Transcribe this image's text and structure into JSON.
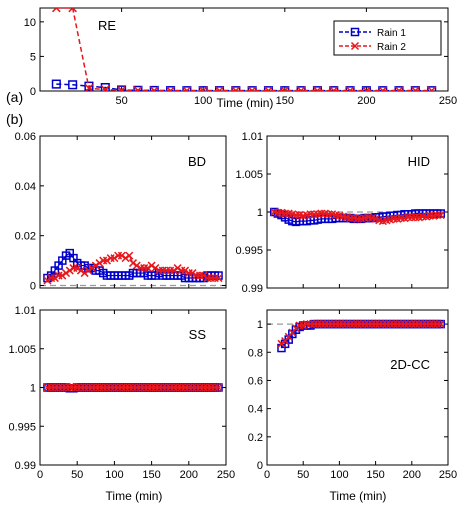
{
  "panel_labels": {
    "a": "(a)",
    "b": "(b)"
  },
  "colors": {
    "rain1": "#0000cc",
    "rain2": "#e8161b",
    "ref": "#999999",
    "axis": "#000000"
  },
  "chart_data": [
    {
      "id": "RE",
      "type": "line",
      "title": "RE",
      "xlabel": "Time (min)",
      "ylabel": "",
      "xlim": [
        0,
        250
      ],
      "ylim": [
        0,
        12
      ],
      "xticks": [
        0,
        50,
        100,
        150,
        200,
        250
      ],
      "yticks": [
        0,
        5,
        10
      ],
      "xtick_labels": [
        "",
        "50",
        "100",
        "150",
        "200",
        "250"
      ],
      "ytick_labels": [
        "0",
        "5",
        "10"
      ],
      "legend": {
        "position": "top-right",
        "entries": [
          "Rain 1",
          "Rain 2"
        ]
      },
      "series": [
        {
          "name": "Rain 1",
          "marker": "square",
          "style": "dashed",
          "color": "#0000cc",
          "x": [
            10,
            20,
            30,
            40,
            50,
            60,
            70,
            80,
            90,
            100,
            110,
            120,
            130,
            140,
            150,
            160,
            170,
            180,
            190,
            200,
            210,
            220,
            230,
            240
          ],
          "y": [
            1.0,
            0.9,
            0.7,
            0.5,
            0.15,
            0.1,
            0.08,
            0.06,
            0.05,
            0.05,
            0.05,
            0.05,
            0.05,
            0.05,
            0.05,
            0.05,
            0.05,
            0.05,
            0.05,
            0.05,
            0.05,
            0.05,
            0.05,
            0.05
          ]
        },
        {
          "name": "Rain 2",
          "marker": "x",
          "style": "dashed",
          "color": "#e8161b",
          "x": [
            10,
            20,
            30,
            40,
            50,
            60,
            70,
            80,
            90,
            100,
            110,
            120,
            130,
            140,
            150,
            160,
            170,
            180,
            190,
            200,
            210,
            220,
            230,
            240
          ],
          "y": [
            12,
            12,
            0.4,
            0.2,
            0.1,
            0.08,
            0.06,
            0.05,
            0.05,
            0.05,
            0.05,
            0.05,
            0.05,
            0.05,
            0.05,
            0.05,
            0.05,
            0.05,
            0.05,
            0.05,
            0.05,
            0.05,
            0.05,
            0.05
          ]
        }
      ]
    },
    {
      "id": "BD",
      "type": "line",
      "title": "BD",
      "xlabel": "",
      "ylabel": "",
      "xlim": [
        0,
        250
      ],
      "ylim": [
        -0.001,
        0.06
      ],
      "xticks": [
        0,
        50,
        100,
        150,
        200,
        250
      ],
      "yticks": [
        0,
        0.02,
        0.04,
        0.06
      ],
      "xtick_labels": [],
      "ytick_labels": [
        "0",
        "0.02",
        "0.04",
        "0.06"
      ],
      "reference_line": 0,
      "series": [
        {
          "name": "Rain 1",
          "marker": "square",
          "color": "#0000cc",
          "x": [
            10,
            15,
            20,
            25,
            30,
            35,
            40,
            45,
            50,
            55,
            60,
            65,
            70,
            75,
            80,
            85,
            90,
            95,
            100,
            105,
            110,
            115,
            120,
            125,
            130,
            135,
            140,
            145,
            150,
            155,
            160,
            165,
            170,
            175,
            180,
            185,
            190,
            195,
            200,
            205,
            210,
            215,
            220,
            225,
            230,
            235,
            240
          ],
          "y": [
            0.003,
            0.004,
            0.006,
            0.008,
            0.01,
            0.012,
            0.013,
            0.011,
            0.009,
            0.008,
            0.008,
            0.007,
            0.007,
            0.006,
            0.006,
            0.005,
            0.004,
            0.004,
            0.004,
            0.004,
            0.004,
            0.004,
            0.004,
            0.005,
            0.005,
            0.005,
            0.005,
            0.004,
            0.004,
            0.004,
            0.005,
            0.004,
            0.004,
            0.004,
            0.004,
            0.004,
            0.004,
            0.003,
            0.003,
            0.003,
            0.003,
            0.003,
            0.003,
            0.004,
            0.004,
            0.004,
            0.004
          ]
        },
        {
          "name": "Rain 2",
          "marker": "x",
          "color": "#e8161b",
          "x": [
            10,
            15,
            20,
            25,
            30,
            35,
            40,
            45,
            50,
            55,
            60,
            65,
            70,
            75,
            80,
            85,
            90,
            95,
            100,
            105,
            110,
            115,
            120,
            125,
            130,
            135,
            140,
            145,
            150,
            155,
            160,
            165,
            170,
            175,
            180,
            185,
            190,
            195,
            200,
            205,
            210,
            215,
            220,
            225,
            230,
            235,
            240
          ],
          "y": [
            0.002,
            0.003,
            0.003,
            0.004,
            0.004,
            0.005,
            0.006,
            0.007,
            0.007,
            0.006,
            0.005,
            0.006,
            0.007,
            0.008,
            0.009,
            0.01,
            0.01,
            0.011,
            0.011,
            0.012,
            0.012,
            0.011,
            0.012,
            0.009,
            0.008,
            0.007,
            0.007,
            0.007,
            0.008,
            0.007,
            0.006,
            0.006,
            0.006,
            0.006,
            0.006,
            0.007,
            0.006,
            0.006,
            0.005,
            0.005,
            0.004,
            0.004,
            0.004,
            0.003,
            0.003,
            0.003,
            0.003
          ]
        }
      ]
    },
    {
      "id": "HID",
      "type": "line",
      "title": "HID",
      "xlabel": "",
      "ylabel": "",
      "xlim": [
        0,
        250
      ],
      "ylim": [
        0.99,
        1.01
      ],
      "xticks": [
        0,
        50,
        100,
        150,
        200,
        250
      ],
      "yticks": [
        0.99,
        0.995,
        1,
        1.005,
        1.01
      ],
      "xtick_labels": [],
      "ytick_labels": [
        "0.99",
        "0.995",
        "1",
        "1.005",
        "1.01"
      ],
      "reference_line": 1,
      "series": [
        {
          "name": "Rain 1",
          "marker": "square",
          "color": "#0000cc",
          "x": [
            10,
            15,
            20,
            25,
            30,
            35,
            40,
            45,
            50,
            55,
            60,
            65,
            70,
            75,
            80,
            85,
            90,
            95,
            100,
            105,
            110,
            115,
            120,
            125,
            130,
            135,
            140,
            145,
            150,
            155,
            160,
            165,
            170,
            175,
            180,
            185,
            190,
            195,
            200,
            205,
            210,
            215,
            220,
            225,
            230,
            235,
            240
          ],
          "y": [
            1.0,
            0.9998,
            0.9996,
            0.9993,
            0.999,
            0.9988,
            0.9987,
            0.9988,
            0.9988,
            0.9988,
            0.9989,
            0.9989,
            0.999,
            0.9991,
            0.9991,
            0.9991,
            0.9991,
            0.9992,
            0.9992,
            0.9992,
            0.9992,
            0.9992,
            0.9991,
            0.9991,
            0.9991,
            0.9992,
            0.9992,
            0.9992,
            0.9993,
            0.9993,
            0.9994,
            0.9994,
            0.9995,
            0.9995,
            0.9996,
            0.9996,
            0.9997,
            0.9997,
            0.9997,
            0.9998,
            0.9998,
            0.9998,
            0.9998,
            0.9998,
            0.9998,
            0.9998,
            0.9998
          ]
        },
        {
          "name": "Rain 2",
          "marker": "x",
          "color": "#e8161b",
          "x": [
            10,
            15,
            20,
            25,
            30,
            35,
            40,
            45,
            50,
            55,
            60,
            65,
            70,
            75,
            80,
            85,
            90,
            95,
            100,
            105,
            110,
            115,
            120,
            125,
            130,
            135,
            140,
            145,
            150,
            155,
            160,
            165,
            170,
            175,
            180,
            185,
            190,
            195,
            200,
            205,
            210,
            215,
            220,
            225,
            230,
            235,
            240
          ],
          "y": [
            1.0,
            0.9999,
            0.9999,
            0.9998,
            0.9998,
            0.9997,
            0.9996,
            0.9996,
            0.9995,
            0.9996,
            0.9997,
            0.9997,
            0.9997,
            0.9998,
            0.9998,
            0.9997,
            0.9997,
            0.9996,
            0.9995,
            0.9994,
            0.9993,
            0.9992,
            0.9992,
            0.9991,
            0.9991,
            0.9992,
            0.9993,
            0.9992,
            0.9991,
            0.9989,
            0.9988,
            0.9989,
            0.999,
            0.9991,
            0.9991,
            0.9992,
            0.9992,
            0.9993,
            0.9993,
            0.9993,
            0.9993,
            0.9994,
            0.9994,
            0.9995,
            0.9995,
            0.9996,
            0.9996
          ]
        }
      ]
    },
    {
      "id": "SS",
      "type": "line",
      "title": "SS",
      "xlabel": "Time (min)",
      "ylabel": "",
      "xlim": [
        0,
        250
      ],
      "ylim": [
        0.99,
        1.01
      ],
      "xticks": [
        0,
        50,
        100,
        150,
        200,
        250
      ],
      "yticks": [
        0.99,
        0.995,
        1,
        1.005,
        1.01
      ],
      "xtick_labels": [
        "0",
        "50",
        "100",
        "150",
        "200",
        "250"
      ],
      "ytick_labels": [
        "0.99",
        "0.995",
        "1",
        "1.005",
        "1.01"
      ],
      "reference_line": 1,
      "series": [
        {
          "name": "Rain 1",
          "marker": "square",
          "color": "#0000cc",
          "x": [
            10,
            15,
            20,
            25,
            30,
            35,
            40,
            45,
            50,
            55,
            60,
            65,
            70,
            75,
            80,
            85,
            90,
            95,
            100,
            105,
            110,
            115,
            120,
            125,
            130,
            135,
            140,
            145,
            150,
            155,
            160,
            165,
            170,
            175,
            180,
            185,
            190,
            195,
            200,
            205,
            210,
            215,
            220,
            225,
            230,
            235,
            240
          ],
          "y": [
            1.0,
            1.0,
            1.0,
            1.0,
            1.0,
            1.0,
            0.9999,
            0.9999,
            1.0,
            1.0,
            1.0,
            1.0,
            1.0,
            1.0,
            1.0,
            1.0,
            1.0,
            1.0,
            1.0,
            1.0,
            1.0,
            1.0,
            1.0,
            1.0,
            1.0,
            1.0,
            1.0,
            1.0,
            1.0,
            1.0,
            1.0,
            1.0,
            1.0,
            1.0,
            1.0,
            1.0,
            1.0,
            1.0,
            1.0,
            1.0,
            1.0,
            1.0,
            1.0,
            1.0,
            1.0,
            1.0,
            1.0
          ]
        },
        {
          "name": "Rain 2",
          "marker": "x",
          "color": "#e8161b",
          "x": [
            10,
            15,
            20,
            25,
            30,
            35,
            40,
            45,
            50,
            55,
            60,
            65,
            70,
            75,
            80,
            85,
            90,
            95,
            100,
            105,
            110,
            115,
            120,
            125,
            130,
            135,
            140,
            145,
            150,
            155,
            160,
            165,
            170,
            175,
            180,
            185,
            190,
            195,
            200,
            205,
            210,
            215,
            220,
            225,
            230,
            235,
            240
          ],
          "y": [
            1.0,
            1.0,
            1.0,
            1.0,
            1.0,
            1.0,
            1.0,
            1.0,
            1.0,
            1.0,
            1.0,
            1.0,
            1.0,
            1.0,
            1.0,
            1.0,
            1.0,
            1.0,
            1.0,
            1.0,
            1.0,
            1.0,
            1.0,
            1.0,
            1.0,
            1.0,
            1.0,
            1.0,
            1.0,
            1.0,
            1.0,
            1.0,
            1.0,
            1.0,
            1.0,
            1.0,
            1.0,
            1.0,
            1.0,
            1.0,
            1.0,
            1.0,
            1.0,
            1.0,
            1.0,
            1.0,
            1.0
          ]
        }
      ]
    },
    {
      "id": "2D-CC",
      "type": "line",
      "title": "2D-CC",
      "xlabel": "Time (min)",
      "ylabel": "",
      "xlim": [
        0,
        250
      ],
      "ylim": [
        0,
        1.1
      ],
      "xticks": [
        0,
        50,
        100,
        150,
        200,
        250
      ],
      "yticks": [
        0,
        0.2,
        0.4,
        0.6,
        0.8,
        1
      ],
      "xtick_labels": [
        "0",
        "50",
        "100",
        "150",
        "200",
        "250"
      ],
      "ytick_labels": [
        "0",
        "0.2",
        "0.4",
        "0.6",
        "0.8",
        "1"
      ],
      "reference_line": 1,
      "series": [
        {
          "name": "Rain 1",
          "marker": "square",
          "color": "#0000cc",
          "x": [
            20,
            25,
            30,
            35,
            40,
            45,
            50,
            55,
            60,
            65,
            70,
            75,
            80,
            85,
            90,
            95,
            100,
            105,
            110,
            115,
            120,
            125,
            130,
            135,
            140,
            145,
            150,
            155,
            160,
            165,
            170,
            175,
            180,
            185,
            190,
            195,
            200,
            205,
            210,
            215,
            220,
            225,
            230,
            235,
            240
          ],
          "y": [
            0.83,
            0.86,
            0.89,
            0.93,
            0.96,
            0.98,
            0.99,
            0.99,
            0.99,
            1.0,
            1.0,
            1.0,
            1.0,
            1.0,
            1.0,
            1.0,
            1.0,
            1.0,
            1.0,
            1.0,
            1.0,
            1.0,
            1.0,
            1.0,
            1.0,
            1.0,
            1.0,
            1.0,
            1.0,
            1.0,
            1.0,
            1.0,
            1.0,
            1.0,
            1.0,
            1.0,
            1.0,
            1.0,
            1.0,
            1.0,
            1.0,
            1.0,
            1.0,
            1.0,
            1.0
          ]
        },
        {
          "name": "Rain 2",
          "marker": "x",
          "color": "#e8161b",
          "x": [
            20,
            25,
            30,
            35,
            40,
            45,
            50,
            55,
            60,
            65,
            70,
            75,
            80,
            85,
            90,
            95,
            100,
            105,
            110,
            115,
            120,
            125,
            130,
            135,
            140,
            145,
            150,
            155,
            160,
            165,
            170,
            175,
            180,
            185,
            190,
            195,
            200,
            205,
            210,
            215,
            220,
            225,
            230,
            235,
            240
          ],
          "y": [
            0.86,
            0.88,
            0.91,
            0.94,
            0.97,
            0.99,
            0.99,
            1.0,
            1.0,
            1.0,
            1.0,
            1.0,
            1.0,
            1.0,
            1.0,
            1.0,
            1.0,
            1.0,
            1.0,
            1.0,
            1.0,
            1.0,
            1.0,
            1.0,
            1.0,
            1.0,
            1.0,
            1.0,
            1.0,
            1.0,
            1.0,
            1.0,
            1.0,
            1.0,
            1.0,
            1.0,
            1.0,
            1.0,
            1.0,
            1.0,
            1.0,
            1.0,
            1.0,
            1.0,
            1.0
          ]
        }
      ]
    }
  ]
}
